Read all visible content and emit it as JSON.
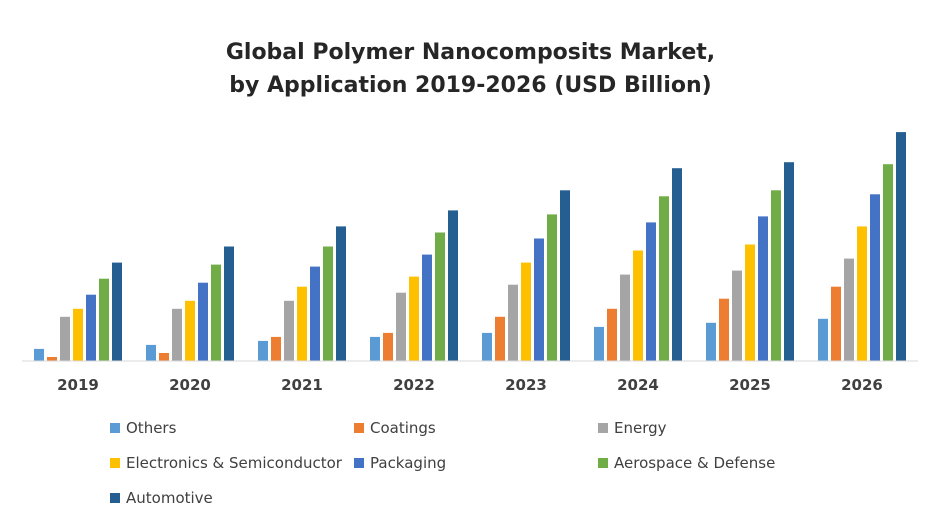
{
  "chart_data": {
    "type": "bar",
    "title_lines": [
      "Global Polymer Nanocomposits Market,",
      "by Application 2019-2026 (USD Billion)"
    ],
    "xlabel": "",
    "ylabel": "",
    "categories": [
      "2019",
      "2020",
      "2021",
      "2022",
      "2023",
      "2024",
      "2025",
      "2026"
    ],
    "series": [
      {
        "name": "Others",
        "color": "#5B9BD5",
        "values": [
          6,
          8,
          10,
          12,
          14,
          17,
          19,
          21
        ]
      },
      {
        "name": "Coatings",
        "color": "#ED7D31",
        "values": [
          2,
          4,
          12,
          14,
          22,
          26,
          31,
          37
        ]
      },
      {
        "name": "Energy",
        "color": "#A5A5A5",
        "values": [
          22,
          26,
          30,
          34,
          38,
          43,
          45,
          51
        ]
      },
      {
        "name": "Electronics & Semiconductor",
        "color": "#FFC000",
        "values": [
          26,
          30,
          37,
          42,
          49,
          55,
          58,
          67
        ]
      },
      {
        "name": "Packaging",
        "color": "#4472C4",
        "values": [
          33,
          39,
          47,
          53,
          61,
          69,
          72,
          83
        ]
      },
      {
        "name": "Aerospace & Defense",
        "color": "#70AD47",
        "values": [
          41,
          48,
          57,
          64,
          73,
          82,
          85,
          98
        ]
      },
      {
        "name": "Automotive",
        "color": "#255E91",
        "values": [
          49,
          57,
          67,
          75,
          85,
          96,
          99,
          114
        ]
      }
    ],
    "ylim": [
      0,
      120
    ],
    "grid": false,
    "legend_position": "bottom"
  }
}
